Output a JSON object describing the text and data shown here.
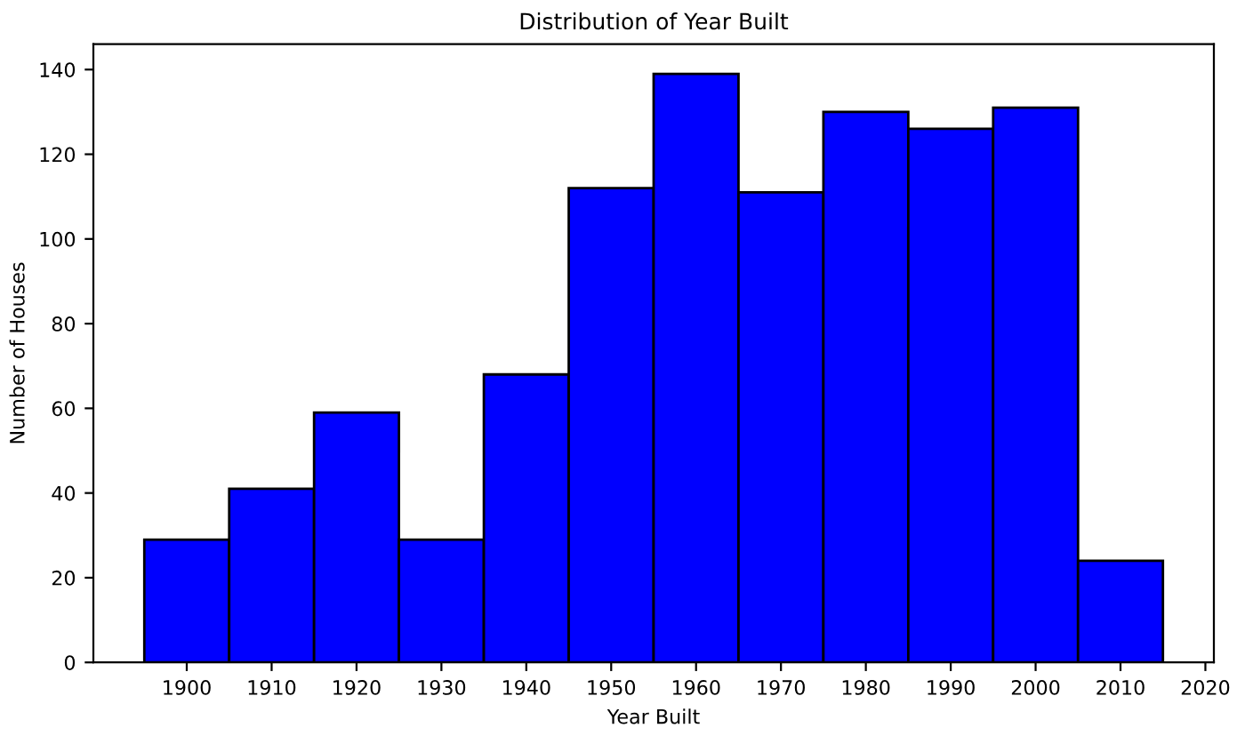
{
  "chart_data": {
    "type": "histogram",
    "title": "Distribution of Year Built",
    "xlabel": "Year Built",
    "ylabel": "Number of Houses",
    "bins": [
      1895,
      1905,
      1915,
      1925,
      1935,
      1945,
      1955,
      1965,
      1975,
      1985,
      1995,
      2005,
      2015
    ],
    "values": [
      29,
      41,
      59,
      29,
      68,
      112,
      139,
      111,
      130,
      126,
      131,
      24
    ],
    "color": "#0000ff",
    "xlim": [
      1889,
      2021
    ],
    "ylim": [
      0,
      146
    ],
    "xticks": [
      1900,
      1910,
      1920,
      1930,
      1940,
      1950,
      1960,
      1970,
      1980,
      1990,
      2000,
      2010,
      2020
    ],
    "yticks": [
      0,
      20,
      40,
      60,
      80,
      100,
      120,
      140
    ],
    "grid": false
  }
}
